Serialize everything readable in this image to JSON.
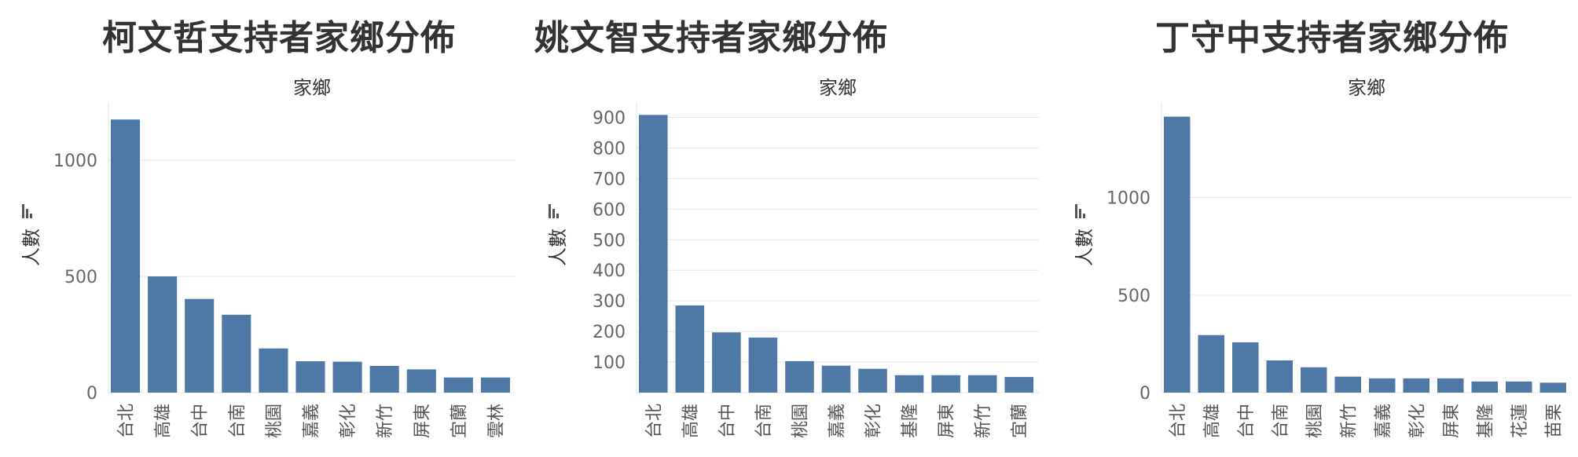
{
  "chart_data": [
    {
      "type": "bar",
      "title": "柯文哲支持者家鄉分佈",
      "xlabel": "家鄉",
      "ylabel": "人數",
      "categories": [
        "台北",
        "高雄",
        "台中",
        "台南",
        "桃園",
        "嘉義",
        "彰化",
        "新竹",
        "屏東",
        "宜蘭",
        "雲林"
      ],
      "values": [
        1175,
        500,
        403,
        335,
        190,
        135,
        133,
        115,
        100,
        65,
        65
      ],
      "ylim": [
        0,
        1250
      ],
      "yticks": [
        0,
        500,
        1000
      ],
      "grid": true,
      "color": "#4e79a7"
    },
    {
      "type": "bar",
      "title": "姚文智支持者家鄉分佈",
      "xlabel": "家鄉",
      "ylabel": "人數",
      "categories": [
        "台北",
        "高雄",
        "台中",
        "台南",
        "桃園",
        "嘉義",
        "彰化",
        "基隆",
        "屏東",
        "新竹",
        "宜蘭"
      ],
      "values": [
        908,
        285,
        197,
        180,
        103,
        88,
        78,
        57,
        57,
        57,
        51
      ],
      "ylim": [
        0,
        950
      ],
      "yticks": [
        100,
        200,
        300,
        400,
        500,
        600,
        700,
        800,
        900
      ],
      "grid": true,
      "color": "#4e79a7"
    },
    {
      "type": "bar",
      "title": "丁守中支持者家鄉分佈",
      "xlabel": "家鄉",
      "ylabel": "人數",
      "categories": [
        "台北",
        "高雄",
        "台中",
        "台南",
        "桃園",
        "新竹",
        "嘉義",
        "彰化",
        "屏東",
        "基隆",
        "花蓮",
        "苗栗"
      ],
      "values": [
        1415,
        295,
        258,
        165,
        130,
        82,
        73,
        73,
        73,
        57,
        57,
        51
      ],
      "ylim": [
        0,
        1490
      ],
      "yticks": [
        0,
        500,
        1000
      ],
      "grid": true,
      "color": "#4e79a7"
    }
  ]
}
